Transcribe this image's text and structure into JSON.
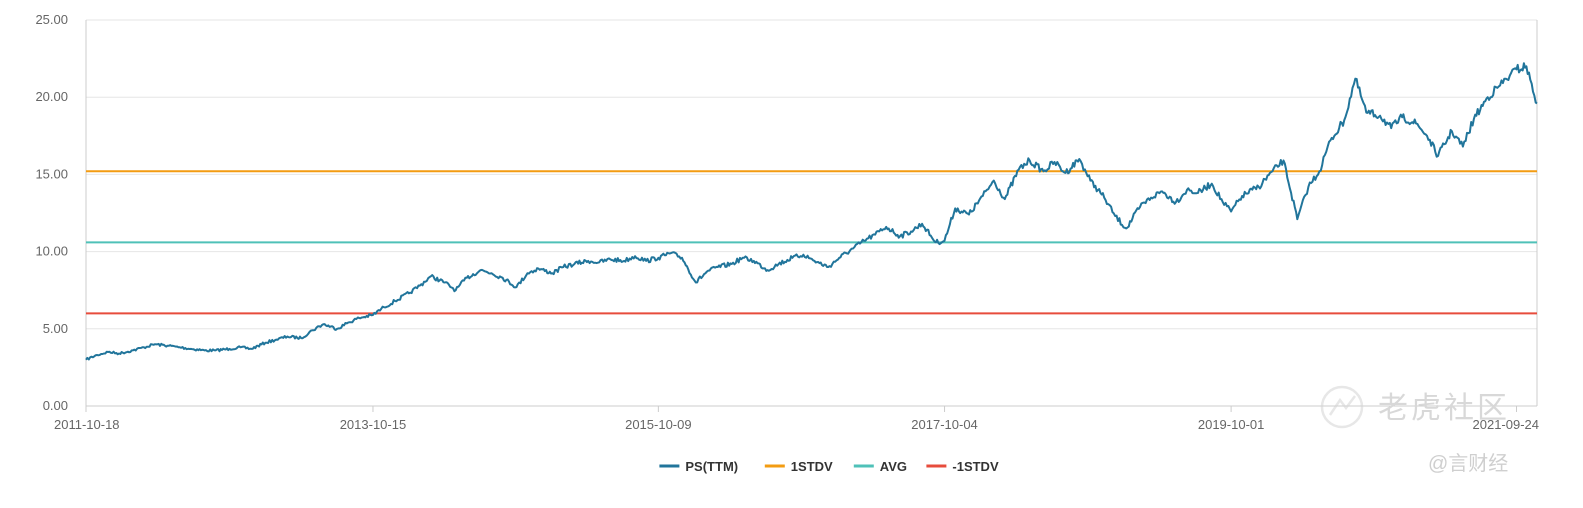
{
  "chart_data": {
    "type": "line",
    "title": "",
    "xlabel": "",
    "ylabel": "",
    "ylim": [
      0,
      25
    ],
    "y_ticks": [
      "0.00",
      "5.00",
      "10.00",
      "15.00",
      "20.00",
      "25.00"
    ],
    "x_tick_labels": [
      "2011-10-18",
      "2013-10-15",
      "2015-10-09",
      "2017-10-04",
      "2019-10-01",
      "2021-09-24"
    ],
    "x_range": [
      "2011-10-18",
      "2021-11-15"
    ],
    "grid": "horizontal",
    "legend_position": "bottom-center",
    "series": [
      {
        "name": "PS(TTM)",
        "color": "#21759b",
        "points": [
          [
            "2011-10-18",
            3.0
          ],
          [
            "2011-11-15",
            3.3
          ],
          [
            "2011-12-13",
            3.5
          ],
          [
            "2012-01-10",
            3.4
          ],
          [
            "2012-02-14",
            3.6
          ],
          [
            "2012-03-13",
            3.8
          ],
          [
            "2012-04-10",
            4.0
          ],
          [
            "2012-05-15",
            3.9
          ],
          [
            "2012-06-12",
            3.8
          ],
          [
            "2012-07-10",
            3.7
          ],
          [
            "2012-08-14",
            3.6
          ],
          [
            "2012-09-11",
            3.6
          ],
          [
            "2012-10-16",
            3.7
          ],
          [
            "2012-11-13",
            3.8
          ],
          [
            "2012-12-11",
            3.7
          ],
          [
            "2013-01-15",
            4.1
          ],
          [
            "2013-02-12",
            4.3
          ],
          [
            "2013-03-12",
            4.5
          ],
          [
            "2013-04-16",
            4.4
          ],
          [
            "2013-05-14",
            4.9
          ],
          [
            "2013-06-11",
            5.3
          ],
          [
            "2013-07-16",
            5.0
          ],
          [
            "2013-08-13",
            5.4
          ],
          [
            "2013-09-10",
            5.7
          ],
          [
            "2013-10-15",
            5.9
          ],
          [
            "2013-11-12",
            6.4
          ],
          [
            "2013-12-10",
            6.8
          ],
          [
            "2014-01-14",
            7.3
          ],
          [
            "2014-02-11",
            7.8
          ],
          [
            "2014-03-11",
            8.4
          ],
          [
            "2014-04-15",
            8.0
          ],
          [
            "2014-05-13",
            7.5
          ],
          [
            "2014-06-10",
            8.3
          ],
          [
            "2014-07-15",
            8.8
          ],
          [
            "2014-08-12",
            8.6
          ],
          [
            "2014-09-09",
            8.3
          ],
          [
            "2014-10-14",
            7.7
          ],
          [
            "2014-11-11",
            8.6
          ],
          [
            "2014-12-09",
            8.9
          ],
          [
            "2015-01-13",
            8.6
          ],
          [
            "2015-02-10",
            9.0
          ],
          [
            "2015-03-10",
            9.2
          ],
          [
            "2015-04-14",
            9.4
          ],
          [
            "2015-05-12",
            9.3
          ],
          [
            "2015-06-09",
            9.5
          ],
          [
            "2015-07-14",
            9.4
          ],
          [
            "2015-08-11",
            9.7
          ],
          [
            "2015-09-08",
            9.4
          ],
          [
            "2015-10-09",
            9.6
          ],
          [
            "2015-11-10",
            9.9
          ],
          [
            "2015-12-08",
            9.6
          ],
          [
            "2016-01-12",
            8.0
          ],
          [
            "2016-02-09",
            8.7
          ],
          [
            "2016-03-08",
            9.0
          ],
          [
            "2016-04-12",
            9.2
          ],
          [
            "2016-05-10",
            9.6
          ],
          [
            "2016-06-07",
            9.4
          ],
          [
            "2016-07-12",
            8.8
          ],
          [
            "2016-08-09",
            9.2
          ],
          [
            "2016-09-13",
            9.6
          ],
          [
            "2016-10-11",
            9.8
          ],
          [
            "2016-11-08",
            9.4
          ],
          [
            "2016-12-13",
            9.0
          ],
          [
            "2017-01-10",
            9.6
          ],
          [
            "2017-02-14",
            10.2
          ],
          [
            "2017-03-14",
            10.7
          ],
          [
            "2017-04-11",
            11.1
          ],
          [
            "2017-05-09",
            11.6
          ],
          [
            "2017-06-13",
            11.0
          ],
          [
            "2017-07-11",
            11.3
          ],
          [
            "2017-08-08",
            11.8
          ],
          [
            "2017-09-12",
            10.6
          ],
          [
            "2017-10-04",
            10.7
          ],
          [
            "2017-10-31",
            12.8
          ],
          [
            "2017-12-05",
            12.4
          ],
          [
            "2018-01-09",
            13.6
          ],
          [
            "2018-02-06",
            14.6
          ],
          [
            "2018-03-06",
            13.4
          ],
          [
            "2018-04-10",
            15.3
          ],
          [
            "2018-05-08",
            15.9
          ],
          [
            "2018-06-12",
            15.2
          ],
          [
            "2018-07-10",
            15.8
          ],
          [
            "2018-08-07",
            15.1
          ],
          [
            "2018-09-11",
            16.0
          ],
          [
            "2018-10-09",
            14.6
          ],
          [
            "2018-11-13",
            13.5
          ],
          [
            "2018-12-11",
            12.3
          ],
          [
            "2019-01-08",
            11.5
          ],
          [
            "2019-02-12",
            12.9
          ],
          [
            "2019-03-12",
            13.5
          ],
          [
            "2019-04-09",
            13.9
          ],
          [
            "2019-05-14",
            13.2
          ],
          [
            "2019-06-11",
            14.0
          ],
          [
            "2019-07-09",
            13.8
          ],
          [
            "2019-08-13",
            14.4
          ],
          [
            "2019-09-10",
            13.2
          ],
          [
            "2019-10-01",
            12.6
          ],
          [
            "2019-10-29",
            13.6
          ],
          [
            "2019-12-10",
            14.2
          ],
          [
            "2020-01-14",
            15.2
          ],
          [
            "2020-02-11",
            15.9
          ],
          [
            "2020-03-17",
            12.1
          ],
          [
            "2020-04-14",
            14.2
          ],
          [
            "2020-05-12",
            15.2
          ],
          [
            "2020-06-09",
            17.2
          ],
          [
            "2020-07-14",
            18.5
          ],
          [
            "2020-08-11",
            21.2
          ],
          [
            "2020-09-08",
            19.0
          ],
          [
            "2020-10-13",
            18.8
          ],
          [
            "2020-11-10",
            18.0
          ],
          [
            "2020-12-08",
            18.7
          ],
          [
            "2021-01-12",
            18.3
          ],
          [
            "2021-02-09",
            17.5
          ],
          [
            "2021-03-09",
            16.2
          ],
          [
            "2021-04-13",
            17.8
          ],
          [
            "2021-05-11",
            16.8
          ],
          [
            "2021-06-08",
            18.6
          ],
          [
            "2021-07-13",
            20.0
          ],
          [
            "2021-08-10",
            20.7
          ],
          [
            "2021-09-07",
            21.4
          ],
          [
            "2021-09-24",
            21.8
          ],
          [
            "2021-10-19",
            22.0
          ],
          [
            "2021-11-15",
            19.6
          ]
        ]
      },
      {
        "name": "1STDV",
        "color": "#f39c12",
        "value": 15.2
      },
      {
        "name": "AVG",
        "color": "#4fc1b8",
        "value": 10.6
      },
      {
        "name": "-1STDV",
        "color": "#e74c3c",
        "value": 6.0
      }
    ]
  },
  "watermark": {
    "main_text": "老虎社区",
    "sub_text": "@言财经",
    "icon": "tiger-logo-icon"
  }
}
